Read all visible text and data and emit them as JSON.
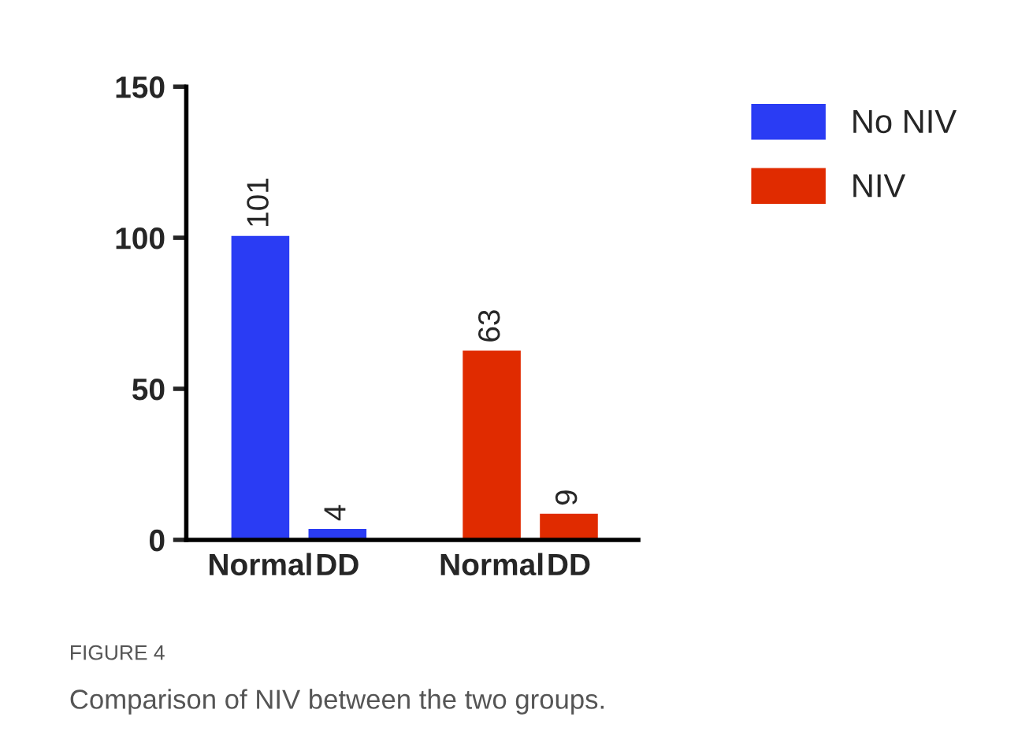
{
  "chart_data": {
    "type": "bar",
    "categories": [
      "Normal",
      "DD",
      "Normal",
      "DD"
    ],
    "series": [
      {
        "name": "No NIV",
        "color": "#2a3cf4",
        "values": [
          101,
          4,
          null,
          null
        ]
      },
      {
        "name": "NIV",
        "color": "#e02b00",
        "values": [
          null,
          null,
          63,
          9
        ]
      }
    ],
    "ylim": [
      0,
      150
    ],
    "yticks": [
      0,
      50,
      100,
      150
    ],
    "data_labels": true,
    "legend": "top right",
    "grid": false,
    "annotations": [
      "FIGURE 4",
      "Comparison of NIV between the two groups."
    ]
  }
}
